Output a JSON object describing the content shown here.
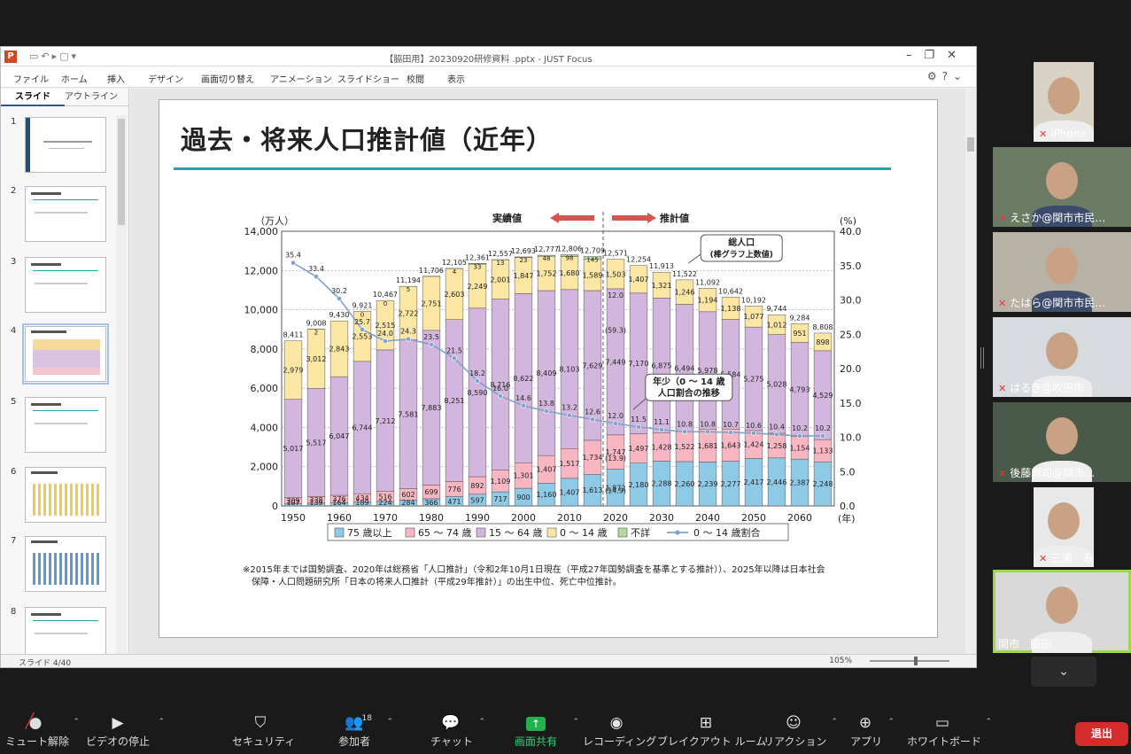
{
  "window": {
    "title": "【脇田用】20230920研修資料 .pptx - JUST Focus",
    "menus": [
      "ファイル",
      "ホーム",
      "挿入",
      "デザイン",
      "画面切り替え",
      "アニメーション",
      "スライドショー",
      "校閲",
      "表示"
    ],
    "side_tabs": [
      "スライド",
      "アウトライン"
    ],
    "thumbnails": [
      "1",
      "2",
      "3",
      "4",
      "5",
      "6",
      "7",
      "8"
    ],
    "selected_thumbnail": 4,
    "status": "スライド 4/40",
    "zoom": "105%"
  },
  "slide": {
    "title": "過去・将来人口推計値（近年）",
    "footnote_line1": "※2015年までは国勢調査、2020年は総務省「人口推計」（令和2年10月1日現在（平成27年国勢調査を基準とする推計））、2025年以降は日本社会",
    "footnote_line2": "保障・人口問題研究所「日本の将来人口推計（平成29年推計）」の出生中位、死亡中位推計。"
  },
  "chart_data": {
    "type": "bar",
    "left_unit": "（万人）",
    "right_unit": "(%)",
    "x_unit": "(年)",
    "ylim": [
      0,
      14000
    ],
    "ylim_right": [
      0,
      40
    ],
    "left_ticks": [
      "0",
      "2,000",
      "4,000",
      "6,000",
      "8,000",
      "10,000",
      "12,000",
      "14,000"
    ],
    "right_ticks": [
      "0.0",
      "5.0",
      "10.0",
      "15.0",
      "20.0",
      "25.0",
      "30.0",
      "35.0",
      "40.0"
    ],
    "x_tick_labels": [
      "1950",
      "1960",
      "1970",
      "1980",
      "1990",
      "2000",
      "2010",
      "2020",
      "2030",
      "2040",
      "2050",
      "2060"
    ],
    "categories": [
      "1950",
      "1955",
      "1960",
      "1965",
      "1970",
      "1975",
      "1980",
      "1985",
      "1990",
      "1995",
      "2000",
      "2005",
      "2010",
      "2015",
      "2020",
      "2025",
      "2030",
      "2035",
      "2040",
      "2045",
      "2050",
      "2055",
      "2060",
      "2065"
    ],
    "series": [
      {
        "name": "75 歳以上",
        "color": "#8ecae6",
        "values": [
          107,
          139,
          164,
          189,
          224,
          284,
          366,
          471,
          597,
          717,
          900,
          1160,
          1407,
          1613,
          1872,
          2180,
          2288,
          2260,
          2239,
          2277,
          2417,
          2446,
          2387,
          2248
        ],
        "labels": [
          "107",
          "139",
          "164",
          "189",
          "224",
          "284",
          "366",
          "471",
          "597",
          "717",
          "900",
          "1,160",
          "1,407",
          "1,613",
          "1,872",
          "2,180",
          "2,288",
          "2,260",
          "2,239",
          "2,277",
          "2,417",
          "2,446",
          "2,387",
          "2,248"
        ]
      },
      {
        "name": "65 ～ 74 歳",
        "color": "#f7b6c2",
        "values": [
          309,
          338,
          376,
          434,
          516,
          602,
          699,
          776,
          892,
          1109,
          1301,
          1407,
          1517,
          1734,
          1747,
          1497,
          1428,
          1522,
          1681,
          1643,
          1424,
          1258,
          1154,
          1133
        ],
        "labels": [
          "309",
          "338",
          "376",
          "434",
          "516",
          "602",
          "699",
          "776",
          "892",
          "1,109",
          "1,301",
          "1,407",
          "1,517",
          "1,734",
          "1,747",
          "1,497",
          "1,428",
          "1,522",
          "1,681",
          "1,643",
          "1,424",
          "1,258",
          "1,154",
          "1,133"
        ]
      },
      {
        "name": "15 ～ 64 歳",
        "color": "#d3b6dd",
        "values": [
          5017,
          5517,
          6047,
          6744,
          7212,
          7581,
          7883,
          8251,
          8590,
          8716,
          8622,
          8409,
          8103,
          7629,
          7449,
          7170,
          6875,
          6494,
          5978,
          5584,
          5275,
          5028,
          4793,
          4529
        ],
        "labels": [
          "5,017",
          "5,517",
          "6,047",
          "6,744",
          "7,212",
          "7,581",
          "7,883",
          "8,251",
          "8,590",
          "8,716",
          "8,622",
          "8,409",
          "8,103",
          "7,629",
          "7,449",
          "7,170",
          "6,875",
          "6,494",
          "5,978",
          "5,584",
          "5,275",
          "5,028",
          "4,793",
          "4,529"
        ]
      },
      {
        "name": "0 ～ 14 歳",
        "color": "#fce6a4",
        "values": [
          2979,
          3012,
          2843,
          2553,
          2515,
          2722,
          2751,
          2603,
          2249,
          2001,
          1847,
          1752,
          1680,
          1589,
          1503,
          1407,
          1321,
          1246,
          1194,
          1138,
          1077,
          1012,
          951,
          898
        ],
        "labels": [
          "2,979",
          "3,012",
          "2,843",
          "2,553",
          "2,515",
          "2,722",
          "2,751",
          "2,603",
          "2,249",
          "2,001",
          "1,847",
          "1,752",
          "1,680",
          "1,589",
          "1,503",
          "1,407",
          "1,321",
          "1,246",
          "1,194",
          "1,138",
          "1,077",
          "1,012",
          "951",
          "898"
        ]
      },
      {
        "name": "不詳",
        "color": "#b5d99c",
        "values": [
          0,
          2,
          0,
          0,
          0,
          5,
          8,
          4,
          33,
          13,
          23,
          48,
          98,
          145,
          0,
          0,
          0,
          0,
          0,
          0,
          0,
          0,
          0,
          0
        ],
        "labels": [
          "",
          "2",
          "",
          "0",
          "0",
          "5",
          "",
          "4",
          "33",
          "13",
          "23",
          "48",
          "98",
          "145",
          "",
          "",
          "",
          "",
          "",
          "",
          "",
          "",
          "",
          ""
        ]
      }
    ],
    "totals": [
      "8,411",
      "9,008",
      "9,430",
      "9,921",
      "10,467",
      "11,194",
      "11,706",
      "12,105",
      "12,361",
      "12,557",
      "12,693",
      "12,777",
      "12,806",
      "12,709",
      "12,571",
      "12,254",
      "11,913",
      "11,522",
      "11,092",
      "10,642",
      "10,192",
      "9,744",
      "9,284",
      "8,808"
    ],
    "ratio_series": {
      "name": "0 ～ 14 歳割合",
      "color": "#7fa3c9",
      "values": [
        35.4,
        33.4,
        30.2,
        25.7,
        24.0,
        24.3,
        23.5,
        21.5,
        18.2,
        16.0,
        14.6,
        13.8,
        13.2,
        12.6,
        12.0,
        11.5,
        11.1,
        10.8,
        10.8,
        10.7,
        10.6,
        10.4,
        10.2,
        10.2
      ],
      "labels": [
        "35.4",
        "33.4",
        "30.2",
        "25.7",
        "24.0",
        "24.3",
        "23.5",
        "21.5",
        "18.2",
        "16.0",
        "14.6",
        "13.8",
        "13.2",
        "12.6",
        "12.0",
        "11.5",
        "11.1",
        "10.8",
        "10.8",
        "10.7",
        "10.6",
        "10.4",
        "10.2",
        "10.2"
      ]
    },
    "callout_2020_pct": [
      "(59.3)",
      "(13.9)",
      "(14.9)"
    ],
    "callout_2020_ratio_note": "12.0",
    "actual_label": "実績値",
    "estimate_label": "推計値",
    "total_note_line1": "総人口",
    "total_note_line2": "(棒グラフ上数値)",
    "youth_note_line1": "年少（0 ～ 14 歳",
    "youth_note_line2": "人口割合の推移"
  },
  "zoom": {
    "participants": [
      {
        "name": "iPhone",
        "muted": true
      },
      {
        "name": "えさか@関市市民…",
        "muted": true
      },
      {
        "name": "たはら@関市市民…",
        "muted": true
      },
      {
        "name": "はるき@吹田市",
        "muted": true
      },
      {
        "name": "後藤敦司@関市…",
        "muted": true
      },
      {
        "name": "三浦　みよし",
        "muted": true
      },
      {
        "name": "関市　脇田",
        "muted": false
      }
    ],
    "toolbar": [
      {
        "label": "ミュート解除",
        "icon": "mic-off-icon"
      },
      {
        "label": "ビデオの停止",
        "icon": "video-icon"
      },
      {
        "label": "セキュリティ",
        "icon": "shield-icon"
      },
      {
        "label": "参加者",
        "icon": "participants-icon",
        "count": "18"
      },
      {
        "label": "チャット",
        "icon": "chat-icon"
      },
      {
        "label": "画面共有",
        "icon": "share-screen-icon"
      },
      {
        "label": "レコーディング",
        "icon": "record-icon"
      },
      {
        "label": "ブレイクアウト ルーム",
        "icon": "breakout-icon"
      },
      {
        "label": "リアクション",
        "icon": "reaction-icon"
      },
      {
        "label": "アプリ",
        "icon": "apps-icon"
      },
      {
        "label": "ホワイトボード",
        "icon": "whiteboard-icon"
      }
    ],
    "leave_label": "退出"
  }
}
